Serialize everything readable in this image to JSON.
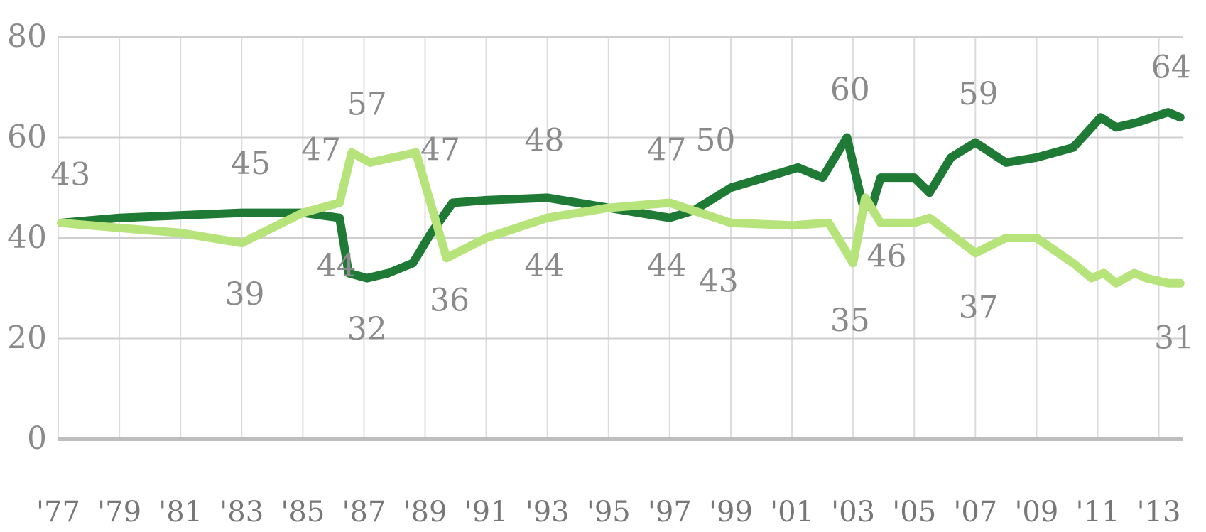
{
  "chart_data": {
    "type": "line",
    "xlim": [
      1977,
      2013.8
    ],
    "ylim": [
      0,
      80
    ],
    "y_ticks": [
      0,
      20,
      40,
      60,
      80
    ],
    "x_tick_values": [
      1977,
      1979,
      1981,
      1983,
      1985,
      1987,
      1989,
      1991,
      1993,
      1995,
      1997,
      1999,
      2001,
      2003,
      2005,
      2007,
      2009,
      2011,
      2013
    ],
    "x_tick_labels": [
      "'77",
      "'79",
      "'81",
      "'83",
      "'85",
      "'87",
      "'89",
      "'91",
      "'93",
      "'95",
      "'97",
      "'99",
      "'01",
      "'03",
      "'05",
      "'07",
      "'09",
      "'11",
      "'13"
    ],
    "grid": true,
    "legend": "none",
    "series": [
      {
        "color": "#1e7a34",
        "points": [
          [
            1977.1,
            43
          ],
          [
            1979,
            44
          ],
          [
            1983,
            45
          ],
          [
            1985,
            45
          ],
          [
            1986.2,
            44
          ],
          [
            1986.5,
            33
          ],
          [
            1987.1,
            32
          ],
          [
            1987.8,
            33
          ],
          [
            1988.6,
            35
          ],
          [
            1989.2,
            41
          ],
          [
            1989.9,
            47
          ],
          [
            1991,
            47.5
          ],
          [
            1993,
            48
          ],
          [
            1995,
            46
          ],
          [
            1997,
            44
          ],
          [
            1997.8,
            45.5
          ],
          [
            1999,
            50
          ],
          [
            2001.2,
            54
          ],
          [
            2002,
            52
          ],
          [
            2002.8,
            60
          ],
          [
            2003.3,
            47
          ],
          [
            2003.6,
            46
          ],
          [
            2003.9,
            52
          ],
          [
            2005,
            52
          ],
          [
            2005.5,
            49
          ],
          [
            2006.2,
            56
          ],
          [
            2007,
            59
          ],
          [
            2008,
            55
          ],
          [
            2009,
            56
          ],
          [
            2010.2,
            58
          ],
          [
            2011.1,
            64
          ],
          [
            2011.6,
            62
          ],
          [
            2012.3,
            63
          ],
          [
            2013.3,
            65
          ],
          [
            2013.7,
            64
          ]
        ]
      },
      {
        "color": "#b6e37a",
        "points": [
          [
            1977.1,
            43
          ],
          [
            1979,
            42
          ],
          [
            1981,
            41
          ],
          [
            1983,
            39
          ],
          [
            1985,
            45
          ],
          [
            1986.2,
            47
          ],
          [
            1986.6,
            57
          ],
          [
            1987.2,
            55
          ],
          [
            1988.7,
            57
          ],
          [
            1989.7,
            36
          ],
          [
            1991,
            40
          ],
          [
            1993,
            44
          ],
          [
            1995,
            46
          ],
          [
            1997,
            47
          ],
          [
            1999,
            43
          ],
          [
            2001,
            42.5
          ],
          [
            2002.2,
            43
          ],
          [
            2003,
            35
          ],
          [
            2003.4,
            48
          ],
          [
            2003.9,
            43
          ],
          [
            2005,
            43
          ],
          [
            2005.5,
            44
          ],
          [
            2007,
            37
          ],
          [
            2008,
            40
          ],
          [
            2009,
            40
          ],
          [
            2010.2,
            35
          ],
          [
            2010.8,
            32
          ],
          [
            2011.2,
            33
          ],
          [
            2011.6,
            31
          ],
          [
            2012.2,
            33
          ],
          [
            2012.6,
            32
          ],
          [
            2013.3,
            31
          ],
          [
            2013.7,
            31
          ]
        ]
      }
    ],
    "annotations": [
      {
        "text": "43",
        "x": 1977.4,
        "y": 50.5
      },
      {
        "text": "45",
        "x": 1983.3,
        "y": 52.7
      },
      {
        "text": "47",
        "x": 1985.6,
        "y": 55.5
      },
      {
        "text": "57",
        "x": 1987.1,
        "y": 64.5
      },
      {
        "text": "47",
        "x": 1989.5,
        "y": 55.5
      },
      {
        "text": "48",
        "x": 1992.9,
        "y": 57.3
      },
      {
        "text": "47",
        "x": 1996.9,
        "y": 55.5
      },
      {
        "text": "50",
        "x": 1998.5,
        "y": 57.4
      },
      {
        "text": "60",
        "x": 2002.9,
        "y": 67.4
      },
      {
        "text": "59",
        "x": 2007.1,
        "y": 66.6
      },
      {
        "text": "64",
        "x": 2013.4,
        "y": 71.9
      },
      {
        "text": "44",
        "x": 1986.1,
        "y": 32.4
      },
      {
        "text": "39",
        "x": 1983.1,
        "y": 26.7
      },
      {
        "text": "32",
        "x": 1987.1,
        "y": 19.8
      },
      {
        "text": "36",
        "x": 1989.8,
        "y": 25.5
      },
      {
        "text": "44",
        "x": 1992.9,
        "y": 32.4
      },
      {
        "text": "44",
        "x": 1996.9,
        "y": 32.4
      },
      {
        "text": "43",
        "x": 1998.6,
        "y": 29.3
      },
      {
        "text": "35",
        "x": 2002.9,
        "y": 21.5
      },
      {
        "text": "46",
        "x": 2004.1,
        "y": 34.3
      },
      {
        "text": "37",
        "x": 2007.1,
        "y": 24.1
      },
      {
        "text": "31",
        "x": 2013.5,
        "y": 18.0
      }
    ]
  }
}
